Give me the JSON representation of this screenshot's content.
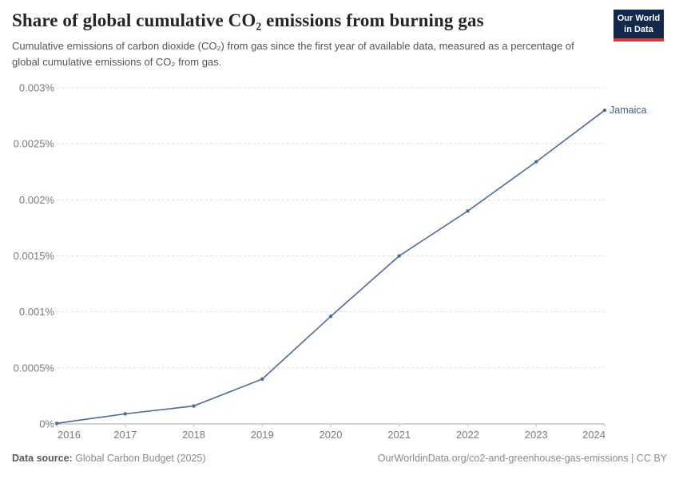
{
  "header": {
    "title": "Share of global cumulative CO₂ emissions from burning gas",
    "subtitle": "Cumulative emissions of carbon dioxide (CO₂) from gas since the first year of available data, measured as a percentage of global cumulative emissions of CO₂ from gas.",
    "logo": {
      "line1": "Our World",
      "line2": "in Data"
    }
  },
  "chart_data": {
    "type": "line",
    "x": [
      2016,
      2017,
      2018,
      2019,
      2020,
      2021,
      2022,
      2023,
      2024
    ],
    "series": [
      {
        "name": "Jamaica",
        "values": [
          5e-06,
          9e-05,
          0.00016,
          0.0004,
          0.00096,
          0.0015,
          0.0019,
          0.00234,
          0.0028
        ],
        "color": "#4c6a9c"
      }
    ],
    "title": "Share of global cumulative CO₂ emissions from burning gas",
    "xlabel": "",
    "ylabel": "",
    "unit": "%",
    "ylim": [
      0,
      0.003
    ],
    "yticks": [
      {
        "value": 0,
        "label": "0%"
      },
      {
        "value": 0.0005,
        "label": "0.0005%"
      },
      {
        "value": 0.001,
        "label": "0.001%"
      },
      {
        "value": 0.0015,
        "label": "0.0015%"
      },
      {
        "value": 0.002,
        "label": "0.002%"
      },
      {
        "value": 0.0025,
        "label": "0.0025%"
      },
      {
        "value": 0.003,
        "label": "0.003%"
      }
    ],
    "grid": true,
    "legend_position": "end-of-line"
  },
  "footer": {
    "data_source_label": "Data source:",
    "data_source_value": " Global Carbon Budget (2025)",
    "credit": "OurWorldinData.org/co2-and-greenhouse-gas-emissions | CC BY"
  },
  "colors": {
    "line": "#4c6a9c",
    "entity_label": "#3d5c8f",
    "grid": "#dedede",
    "axis": "#a8a8a8",
    "x_tick": "#c9c9c9",
    "tick_label": "#7b7b7b",
    "logo_bg": "#12294b",
    "logo_accent": "#d5392f"
  }
}
